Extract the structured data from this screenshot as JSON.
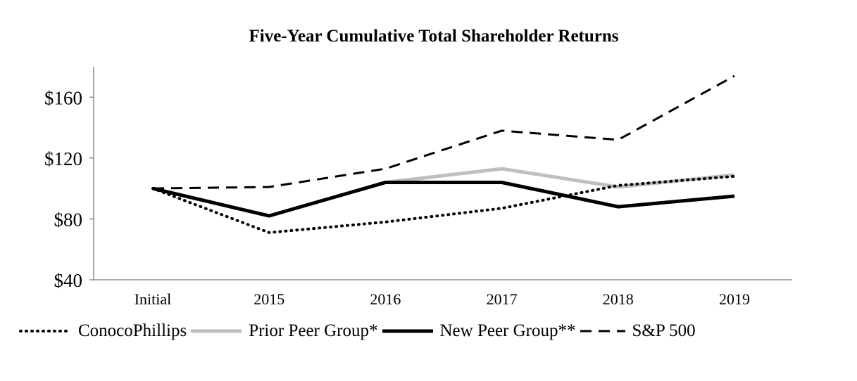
{
  "chart_data": {
    "type": "line",
    "title": "Five-Year Cumulative Total Shareholder Returns",
    "xlabel": "",
    "ylabel": "",
    "categories": [
      "Initial",
      "2015",
      "2016",
      "2017",
      "2018",
      "2019"
    ],
    "y_ticks": [
      40,
      80,
      120,
      160
    ],
    "y_tick_labels": [
      "$40",
      "$80",
      "$120",
      "$160"
    ],
    "ylim": [
      40,
      180
    ],
    "grid": false,
    "legend_position": "bottom",
    "series": [
      {
        "name": "ConocoPhillips",
        "style": "dotted",
        "color": "#000000",
        "values": [
          100,
          71,
          78,
          87,
          102,
          108
        ]
      },
      {
        "name": "Prior Peer Group*",
        "style": "solid-gray",
        "color": "#bfbfbf",
        "values": [
          100,
          82,
          104,
          113,
          101,
          109
        ]
      },
      {
        "name": "New Peer Group**",
        "style": "solid-black",
        "color": "#000000",
        "values": [
          100,
          82,
          104,
          104,
          88,
          95
        ]
      },
      {
        "name": "S&P 500",
        "style": "dashed",
        "color": "#000000",
        "values": [
          100,
          101,
          113,
          138,
          132,
          174
        ]
      }
    ]
  }
}
